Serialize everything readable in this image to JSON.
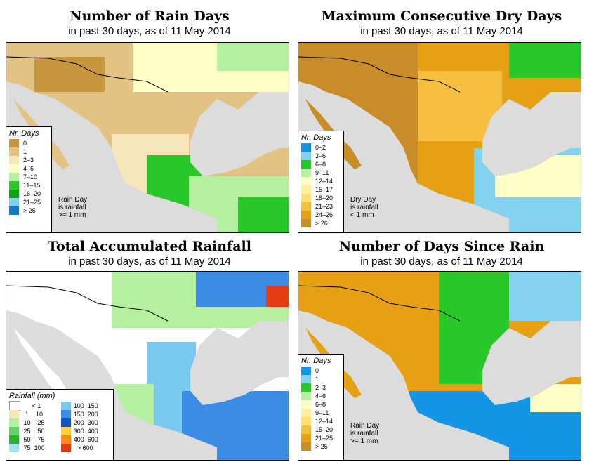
{
  "panels": [
    {
      "title": "Number of Rain Days",
      "subtitle": "in past 30 days, as of  11 May 2014",
      "legend_title": "Nr. Days",
      "legend": [
        {
          "label": "0",
          "color": "#c8963c"
        },
        {
          "label": "1",
          "color": "#e2c384"
        },
        {
          "label": "2–3",
          "color": "#f6e6b9"
        },
        {
          "label": "4–6",
          "color": "#ffffc8"
        },
        {
          "label": "7–10",
          "color": "#b4f0a0"
        },
        {
          "label": "11–15",
          "color": "#28c828"
        },
        {
          "label": "16–20",
          "color": "#10a010"
        },
        {
          "label": "21–25",
          "color": "#7fd2f0"
        },
        {
          "label": "> 25",
          "color": "#1478c8"
        }
      ],
      "note": [
        "Rain Day",
        "is rainfall",
        ">= 1 mm"
      ]
    },
    {
      "title": "Maximum Consecutive Dry Days",
      "subtitle": "in past 30 days, as of  11 May 2014",
      "legend_title": "Nr. Days",
      "legend": [
        {
          "label": "0–2",
          "color": "#1496e6"
        },
        {
          "label": "3–6",
          "color": "#82d2f0"
        },
        {
          "label": "6–8",
          "color": "#28c828"
        },
        {
          "label": "9–11",
          "color": "#b4f0a0"
        },
        {
          "label": "12–14",
          "color": "#ffffc8"
        },
        {
          "label": "15–17",
          "color": "#fff0a0"
        },
        {
          "label": "18–20",
          "color": "#ffe070"
        },
        {
          "label": "21–23",
          "color": "#f5c040"
        },
        {
          "label": "24–26",
          "color": "#e6a014"
        },
        {
          "label": "> 26",
          "color": "#c88c28"
        }
      ],
      "note": [
        "Dry Day",
        "is rainfall",
        "< 1 mm"
      ]
    },
    {
      "title": "Total Accumulated Rainfall",
      "subtitle": "in past 30 days, as of  11 May 2014",
      "legend_title": "Rainfall (mm)",
      "legend_left": [
        {
          "label": "     < 1",
          "color": "#ffffff"
        },
        {
          "label": "  1    10",
          "color": "#f6e6b9"
        },
        {
          "label": " 10    25",
          "color": "#b4f0a0"
        },
        {
          "label": " 25    50",
          "color": "#64d264"
        },
        {
          "label": " 50    75",
          "color": "#28b428"
        },
        {
          "label": " 75  100",
          "color": "#a0e6f0"
        }
      ],
      "legend_right": [
        {
          "label": "100  150",
          "color": "#78c8f0"
        },
        {
          "label": "150  200",
          "color": "#3c8ce6"
        },
        {
          "label": "200  300",
          "color": "#1450c8"
        },
        {
          "label": "300  400",
          "color": "#ffd040"
        },
        {
          "label": "400  600",
          "color": "#ff8c14"
        },
        {
          "label": "  > 600",
          "color": "#e63c14"
        }
      ]
    },
    {
      "title": "Number of Days Since Rain",
      "subtitle": "in past 30 days, as of  11 May 2014",
      "legend_title": "Nr. Days",
      "legend": [
        {
          "label": "0",
          "color": "#1496e6"
        },
        {
          "label": "1",
          "color": "#82d2f0"
        },
        {
          "label": "2–3",
          "color": "#28c828"
        },
        {
          "label": "4–6",
          "color": "#b4f0a0"
        },
        {
          "label": "6–8",
          "color": "#ffffc8"
        },
        {
          "label": "9–11",
          "color": "#fff0a0"
        },
        {
          "label": "12–14",
          "color": "#ffe070"
        },
        {
          "label": "15–20",
          "color": "#f5c040"
        },
        {
          "label": "21–25",
          "color": "#e6a014"
        },
        {
          "label": "> 25",
          "color": "#c88c28"
        }
      ],
      "note": [
        "Rain Day",
        "is rainfall",
        ">= 1 mm"
      ]
    }
  ],
  "colors": {
    "ocean": "#dcdcdc",
    "border": "#000000"
  }
}
